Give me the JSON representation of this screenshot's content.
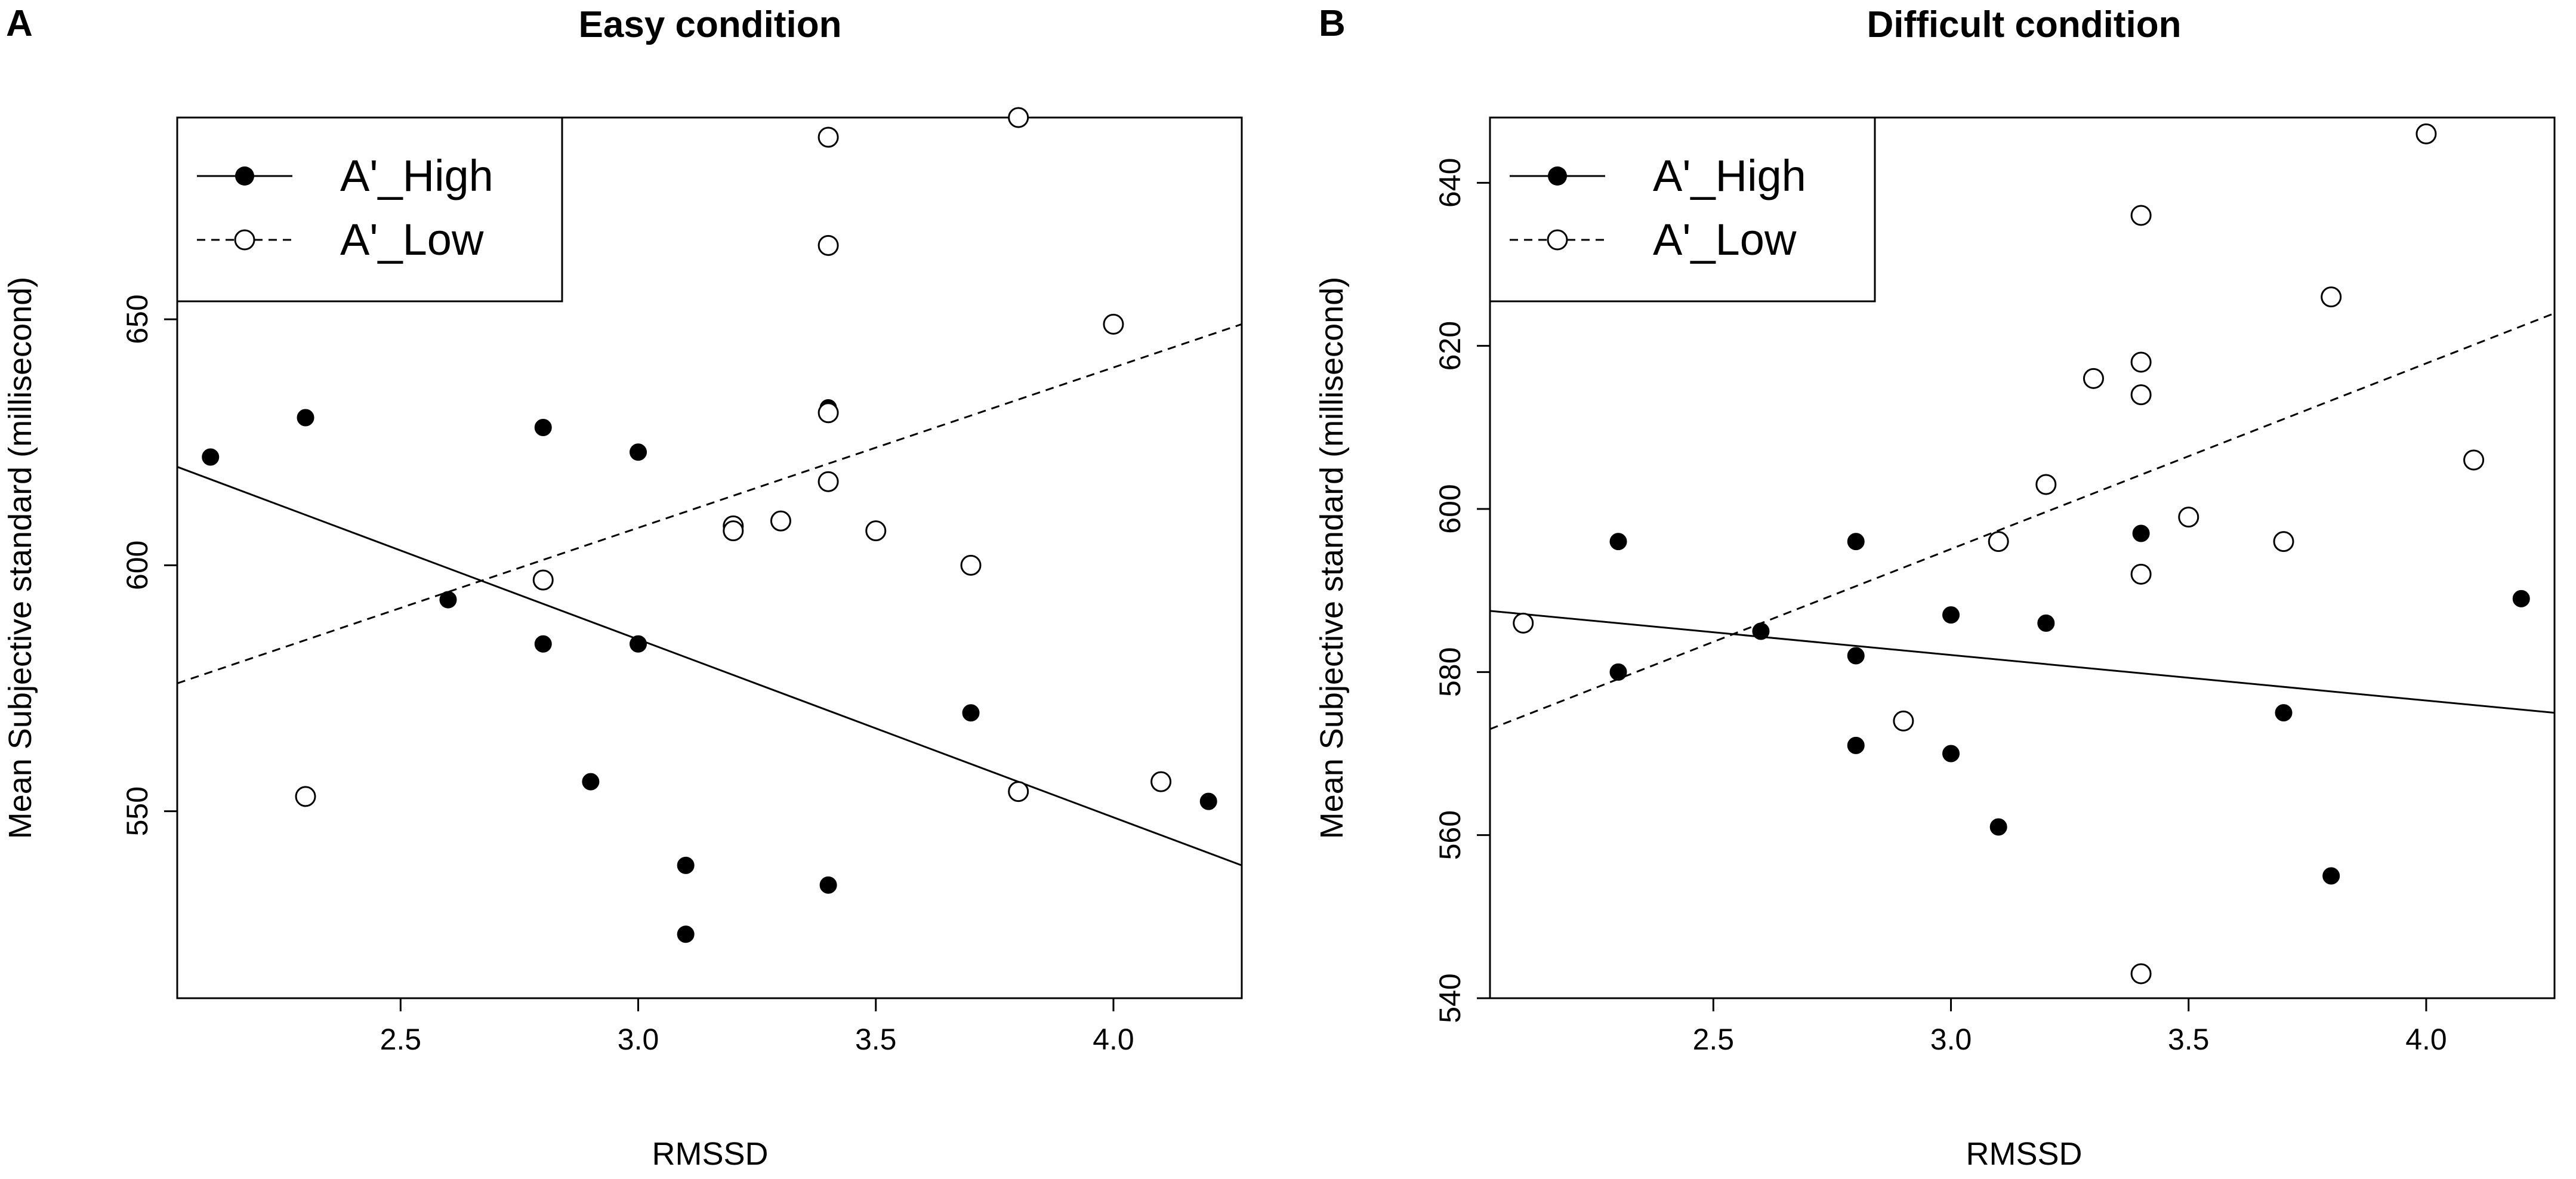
{
  "chart_data": [
    {
      "panel": "A",
      "type": "scatter",
      "title": "Easy condition",
      "xlabel": "RMSSD",
      "ylabel": "Mean Subjective standard (millisecond)",
      "xlim": [
        2.03,
        4.27
      ],
      "ylim": [
        512,
        691
      ],
      "x_ticks": [
        2.5,
        3.0,
        3.5,
        4.0
      ],
      "x_tick_labels": [
        "2.5",
        "3.0",
        "3.5",
        "4.0"
      ],
      "y_ticks": [
        550,
        600,
        650
      ],
      "y_tick_labels": [
        "550",
        "600",
        "650"
      ],
      "legend": {
        "position": "top-left",
        "entries": [
          "A'_High",
          "A'_Low"
        ]
      },
      "series": [
        {
          "name": "A'_High",
          "marker": "filled-circle",
          "line": "solid",
          "fit": [
            [
              2.03,
              620
            ],
            [
              4.27,
              539
            ]
          ],
          "points": [
            [
              2.1,
              622
            ],
            [
              2.3,
              630
            ],
            [
              2.6,
              593
            ],
            [
              2.8,
              628
            ],
            [
              2.8,
              584
            ],
            [
              2.9,
              556
            ],
            [
              3.0,
              623
            ],
            [
              3.0,
              584
            ],
            [
              3.1,
              539
            ],
            [
              3.1,
              525
            ],
            [
              3.4,
              632
            ],
            [
              3.4,
              535
            ],
            [
              3.7,
              570
            ],
            [
              4.2,
              552
            ]
          ]
        },
        {
          "name": "A'_Low",
          "marker": "open-circle",
          "line": "dashed",
          "fit": [
            [
              2.03,
              576
            ],
            [
              4.27,
              649
            ]
          ],
          "points": [
            [
              2.3,
              553
            ],
            [
              2.8,
              597
            ],
            [
              3.2,
              608
            ],
            [
              3.2,
              607
            ],
            [
              3.3,
              609
            ],
            [
              3.4,
              687
            ],
            [
              3.4,
              665
            ],
            [
              3.4,
              631
            ],
            [
              3.4,
              617
            ],
            [
              3.5,
              607
            ],
            [
              3.7,
              600
            ],
            [
              3.8,
              554
            ],
            [
              3.8,
              691
            ],
            [
              4.0,
              649
            ],
            [
              4.1,
              556
            ]
          ]
        }
      ]
    },
    {
      "panel": "B",
      "type": "scatter",
      "title": "Difficult condition",
      "xlabel": "RMSSD",
      "ylabel": "Mean Subjective standard (millisecond)",
      "xlim": [
        2.03,
        4.27
      ],
      "ylim": [
        540,
        648
      ],
      "x_ticks": [
        2.5,
        3.0,
        3.5,
        4.0
      ],
      "x_tick_labels": [
        "2.5",
        "3.0",
        "3.5",
        "4.0"
      ],
      "y_ticks": [
        540,
        560,
        580,
        600,
        620,
        640
      ],
      "y_tick_labels": [
        "540",
        "560",
        "580",
        "600",
        "620",
        "640"
      ],
      "legend": {
        "position": "top-left",
        "entries": [
          "A'_High",
          "A'_Low"
        ]
      },
      "series": [
        {
          "name": "A'_High",
          "marker": "filled-circle",
          "line": "solid",
          "fit": [
            [
              2.03,
              587.5
            ],
            [
              4.27,
              575
            ]
          ],
          "points": [
            [
              2.3,
              596
            ],
            [
              2.3,
              580
            ],
            [
              2.6,
              585
            ],
            [
              2.8,
              596
            ],
            [
              2.8,
              582
            ],
            [
              2.8,
              571
            ],
            [
              3.0,
              587
            ],
            [
              3.0,
              570
            ],
            [
              3.1,
              561
            ],
            [
              3.2,
              586
            ],
            [
              3.4,
              597
            ],
            [
              3.7,
              575
            ],
            [
              3.8,
              555
            ],
            [
              4.2,
              589
            ]
          ]
        },
        {
          "name": "A'_Low",
          "marker": "open-circle",
          "line": "dashed",
          "fit": [
            [
              2.03,
              573
            ],
            [
              4.27,
              624
            ]
          ],
          "points": [
            [
              2.1,
              586
            ],
            [
              2.9,
              574
            ],
            [
              3.1,
              596
            ],
            [
              3.2,
              603
            ],
            [
              3.3,
              616
            ],
            [
              3.4,
              636
            ],
            [
              3.4,
              618
            ],
            [
              3.4,
              614
            ],
            [
              3.4,
              592
            ],
            [
              3.4,
              543
            ],
            [
              3.5,
              599
            ],
            [
              3.7,
              596
            ],
            [
              3.8,
              626
            ],
            [
              4.0,
              646
            ],
            [
              4.1,
              606
            ]
          ]
        }
      ]
    }
  ]
}
